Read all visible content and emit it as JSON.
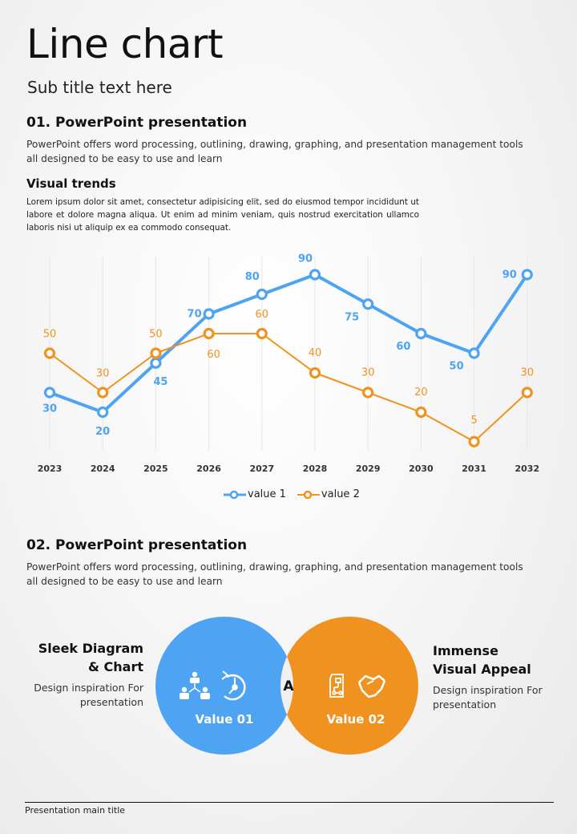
{
  "header": {
    "title": "Line chart",
    "subtitle": "Sub title text here"
  },
  "section1": {
    "heading": "01. PowerPoint presentation",
    "body_line1": "PowerPoint offers word processing, outlining, drawing, graphing, and presentation management tools",
    "body_line2": "all designed to be easy to use and learn",
    "subheading": "Visual trends",
    "lorem": "Lorem ipsum dolor sit amet, consectetur adipisicing elit, sed do eiusmod tempor incididunt ut labore et dolore magna aliqua. Ut enim ad minim veniam, quis nostrud exercitation ullamco laboris nisi ut aliquip ex ea commodo consequat."
  },
  "chart_data": {
    "type": "line",
    "title": "",
    "xlabel": "",
    "ylabel": "",
    "x": [
      "2023",
      "2024",
      "2025",
      "2026",
      "2027",
      "2028",
      "2029",
      "2030",
      "2031",
      "2032"
    ],
    "series": [
      {
        "name": "value 1",
        "color": "#4ea4f2",
        "values": [
          30,
          20,
          45,
          70,
          80,
          90,
          75,
          60,
          50,
          90
        ]
      },
      {
        "name": "value 2",
        "color": "#f0921f",
        "values": [
          50,
          30,
          50,
          60,
          60,
          40,
          30,
          20,
          5,
          30
        ]
      }
    ],
    "ylim": [
      0,
      100
    ],
    "grid": "vertical",
    "legend": "bottom-center",
    "data_labels": true
  },
  "section2": {
    "heading": "02. PowerPoint presentation",
    "body_line1": "PowerPoint offers word processing, outlining, drawing, graphing, and presentation management tools",
    "body_line2": "all designed to be easy to use and learn"
  },
  "venn": {
    "left": {
      "label": "Value 01",
      "color": "#4ea4f2",
      "icons": [
        "team-hierarchy-icon",
        "time-restore-icon"
      ]
    },
    "right": {
      "label": "Value 02",
      "color": "#f0921f",
      "icons": [
        "workflow-document-icon",
        "handshake-icon"
      ]
    },
    "intersection": "A"
  },
  "left_text": {
    "title_line1": "Sleek Diagram",
    "title_line2": "& Chart",
    "body_line1": "Design inspiration For",
    "body_line2": "presentation"
  },
  "right_text": {
    "title_line1": "Immense",
    "title_line2": "Visual Appeal",
    "body_line1": "Design inspiration For",
    "body_line2": "presentation"
  },
  "footer": {
    "text": "Presentation main title"
  }
}
